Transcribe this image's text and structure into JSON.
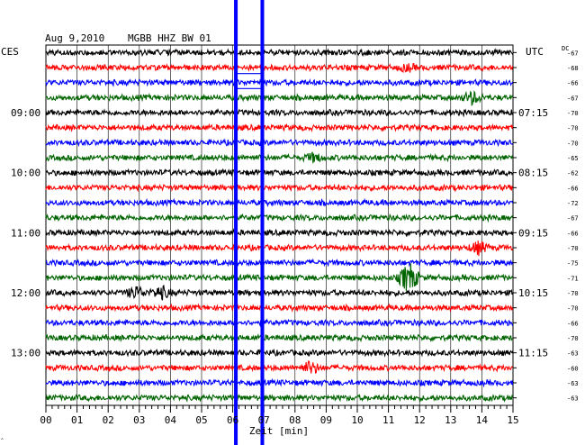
{
  "header": {
    "date": "Aug 9,2010",
    "station": "MGBB HHZ BW 01"
  },
  "left_timezone": "CES",
  "right_timezone": "UTC",
  "dc_label": "DC",
  "corner_mark": "‸",
  "colors": {
    "background": "#ffffff",
    "grid": "#000000",
    "overlay_line": "#0000ff",
    "trace_cycle": [
      "#000000",
      "#ff0000",
      "#0000ff",
      "#006400"
    ]
  },
  "chart_data": {
    "type": "line",
    "title": "",
    "xlabel": "Zeit [min]",
    "ylabel": "",
    "xlim": [
      0,
      15
    ],
    "grid": true,
    "x_ticks": [
      "00",
      "01",
      "02",
      "03",
      "04",
      "05",
      "06",
      "07",
      "08",
      "09",
      "10",
      "11",
      "12",
      "13",
      "14",
      "15"
    ],
    "rows_count": 24,
    "left_hour_labels": [
      {
        "row": 4,
        "label": "09:00"
      },
      {
        "row": 8,
        "label": "10:00"
      },
      {
        "row": 12,
        "label": "11:00"
      },
      {
        "row": 16,
        "label": "12:00"
      },
      {
        "row": 20,
        "label": "13:00"
      }
    ],
    "right_hour_labels": [
      {
        "row": 4,
        "label": "07:15"
      },
      {
        "row": 8,
        "label": "08:15"
      },
      {
        "row": 12,
        "label": "09:15"
      },
      {
        "row": 16,
        "label": "10:15"
      },
      {
        "row": 20,
        "label": "11:15"
      }
    ],
    "dc_offsets": [
      "-67",
      "-68",
      "-66",
      "-67",
      "-70",
      "-70",
      "-70",
      "-65",
      "-62",
      "-66",
      "-72",
      "-67",
      "-66",
      "-70",
      "-75",
      "-71",
      "-70",
      "-70",
      "-66",
      "-70",
      "-63",
      "-60",
      "-63",
      "-63"
    ],
    "vertical_lines_min": [
      6.1,
      6.95
    ],
    "events": [
      {
        "row": 1,
        "minute": 11.6,
        "amplitude": 3
      },
      {
        "row": 3,
        "minute": 13.7,
        "amplitude": 6
      },
      {
        "row": 7,
        "minute": 8.6,
        "amplitude": 4
      },
      {
        "row": 13,
        "minute": 13.9,
        "amplitude": 6
      },
      {
        "row": 15,
        "minute": 11.65,
        "amplitude": 16
      },
      {
        "row": 16,
        "minute": 2.9,
        "amplitude": 6
      },
      {
        "row": 16,
        "minute": 3.7,
        "amplitude": 6
      },
      {
        "row": 21,
        "minute": 8.5,
        "amplitude": 6
      }
    ]
  }
}
